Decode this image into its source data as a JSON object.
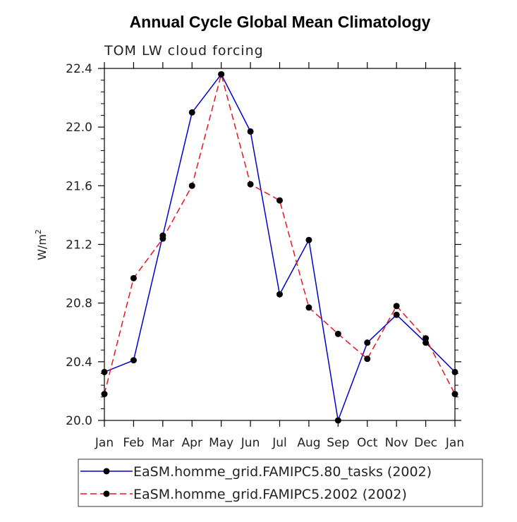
{
  "chart_data": {
    "type": "line",
    "title": "Annual Cycle Global Mean Climatology",
    "subtitle": "TOM LW cloud forcing",
    "ylabel_base": "W/m",
    "ylabel_sup": "2",
    "categories": [
      "Jan",
      "Feb",
      "Mar",
      "Apr",
      "May",
      "Jun",
      "Jul",
      "Aug",
      "Sep",
      "Oct",
      "Nov",
      "Dec",
      "Jan"
    ],
    "ylim": [
      20.0,
      22.4
    ],
    "yticks": [
      "20.0",
      "20.4",
      "20.8",
      "21.2",
      "21.6",
      "22.0",
      "22.4"
    ],
    "series": [
      {
        "name": "EaSM.homme_grid.FAMIPC5.80_tasks (2002)",
        "color": "#0000cc",
        "dash": "solid",
        "values": [
          20.33,
          20.41,
          21.26,
          22.1,
          22.36,
          21.97,
          20.86,
          21.23,
          20.0,
          20.53,
          20.72,
          20.53,
          20.33
        ]
      },
      {
        "name": "EaSM.homme_grid.FAMIPC5.2002 (2002)",
        "color": "#e8141e",
        "dash": "dashed",
        "values": [
          20.18,
          20.97,
          21.24,
          21.6,
          22.36,
          21.61,
          21.5,
          20.77,
          20.59,
          20.42,
          20.78,
          20.56,
          20.18
        ]
      }
    ]
  }
}
